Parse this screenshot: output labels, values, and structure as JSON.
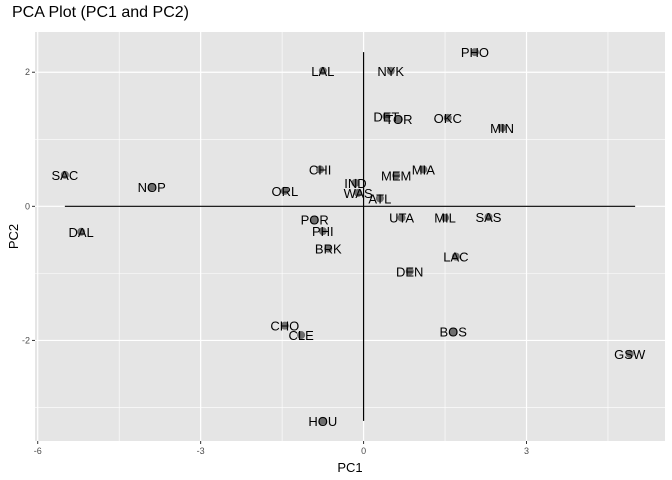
{
  "chart_data": {
    "type": "scatter",
    "title": "PCA Plot (PC1 and PC2)",
    "xlabel": "PC1",
    "ylabel": "PC2",
    "xlim": [
      -6.05,
      5.55
    ],
    "ylim": [
      -3.5,
      2.6
    ],
    "xticks": [
      -6,
      -3,
      0,
      3
    ],
    "yticks": [
      -2,
      0,
      2
    ],
    "xtick_labels": [
      "-6",
      "-3",
      "0",
      "3"
    ],
    "ytick_labels": [
      "-2",
      "0",
      "2"
    ],
    "grid": true,
    "background": "#e5e5e5",
    "gridline_color": "#ffffff",
    "point_color": "#595959",
    "loading_arrows": {
      "x_segment": [
        -5.5,
        5.0
      ],
      "y_segment": [
        -3.2,
        2.3
      ]
    },
    "points": [
      {
        "label": "PHO",
        "x": 2.05,
        "y": 2.3
      },
      {
        "label": "LAL",
        "x": -0.75,
        "y": 2.02
      },
      {
        "label": "NYK",
        "x": 0.5,
        "y": 2.02
      },
      {
        "label": "DET",
        "x": 0.42,
        "y": 1.34
      },
      {
        "label": "TOR",
        "x": 0.65,
        "y": 1.3
      },
      {
        "label": "OKC",
        "x": 1.55,
        "y": 1.32
      },
      {
        "label": "MIN",
        "x": 2.55,
        "y": 1.17
      },
      {
        "label": "SAC",
        "x": -5.5,
        "y": 0.47
      },
      {
        "label": "NOP",
        "x": -3.9,
        "y": 0.29
      },
      {
        "label": "CHI",
        "x": -0.8,
        "y": 0.55
      },
      {
        "label": "MIA",
        "x": 1.1,
        "y": 0.55
      },
      {
        "label": "MEM",
        "x": 0.6,
        "y": 0.46
      },
      {
        "label": "IND",
        "x": -0.15,
        "y": 0.35
      },
      {
        "label": "ORL",
        "x": -1.45,
        "y": 0.23
      },
      {
        "label": "WAS",
        "x": -0.1,
        "y": 0.2
      },
      {
        "label": "ATL",
        "x": 0.3,
        "y": 0.12
      },
      {
        "label": "UTA",
        "x": 0.7,
        "y": -0.17
      },
      {
        "label": "MIL",
        "x": 1.5,
        "y": -0.17
      },
      {
        "label": "SAS",
        "x": 2.3,
        "y": -0.16
      },
      {
        "label": "POR",
        "x": -0.9,
        "y": -0.2
      },
      {
        "label": "PHI",
        "x": -0.75,
        "y": -0.37
      },
      {
        "label": "DAL",
        "x": -5.2,
        "y": -0.38
      },
      {
        "label": "BRK",
        "x": -0.65,
        "y": -0.63
      },
      {
        "label": "LAC",
        "x": 1.7,
        "y": -0.75
      },
      {
        "label": "DEN",
        "x": 0.85,
        "y": -0.97
      },
      {
        "label": "CHO",
        "x": -1.45,
        "y": -1.78
      },
      {
        "label": "CLE",
        "x": -1.15,
        "y": -1.92
      },
      {
        "label": "BOS",
        "x": 1.65,
        "y": -1.87
      },
      {
        "label": "GSW",
        "x": 4.9,
        "y": -2.2
      },
      {
        "label": "HOU",
        "x": -0.75,
        "y": -3.2
      }
    ]
  }
}
